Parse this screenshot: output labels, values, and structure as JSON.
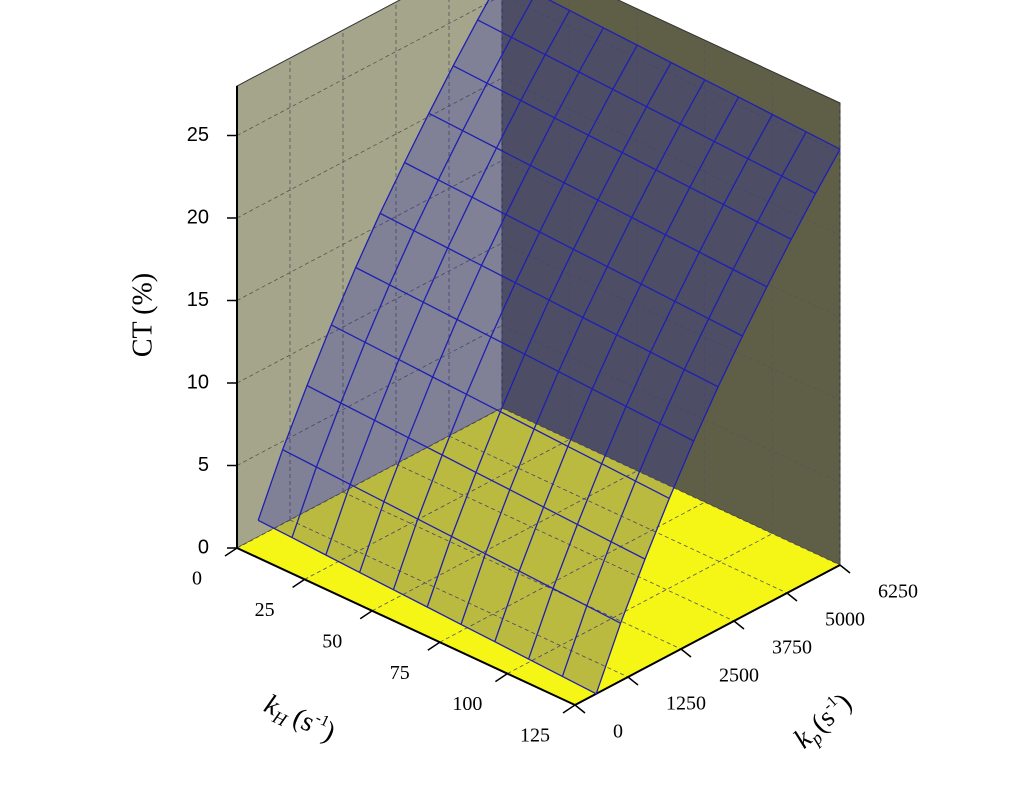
{
  "chart_data": {
    "type": "surface3d",
    "zlabel": "CT (%)",
    "xlabel": {
      "base": "k",
      "sub": "H",
      "unit": "(s",
      "sup": "-1",
      "end": ")"
    },
    "ylabel": {
      "base": "k",
      "sub": "p",
      "unit": "(s",
      "sup": "-1",
      "end": ")"
    },
    "xlim": [
      0,
      125
    ],
    "xticks": [
      0,
      25,
      50,
      75,
      100,
      125
    ],
    "ylim": [
      0,
      6250
    ],
    "yticks": [
      0,
      1250,
      2500,
      3750,
      5000,
      6250
    ],
    "zlim": [
      0,
      28
    ],
    "zticks": [
      0,
      5,
      10,
      15,
      20,
      25
    ],
    "x": [
      0,
      12.5,
      25,
      37.5,
      50,
      62.5,
      75,
      87.5,
      100,
      112.5,
      125
    ],
    "y": [
      500,
      1075,
      1650,
      2225,
      2800,
      3375,
      3950,
      4525,
      5100,
      5675,
      6250
    ],
    "z": [
      [
        1.0,
        4.5,
        7.6,
        10.5,
        13.2,
        15.7,
        18.0,
        20.2,
        22.3,
        24.3,
        26.2
      ],
      [
        0.9,
        4.4,
        7.5,
        10.4,
        13.1,
        15.6,
        17.9,
        20.1,
        22.2,
        24.2,
        26.1
      ],
      [
        0.8,
        4.3,
        7.4,
        10.3,
        13.0,
        15.5,
        17.8,
        20.0,
        22.1,
        24.1,
        26.0
      ],
      [
        0.7,
        4.2,
        7.3,
        10.2,
        12.9,
        15.4,
        17.7,
        19.9,
        22.0,
        24.0,
        25.9
      ],
      [
        0.6,
        4.1,
        7.2,
        10.1,
        12.8,
        15.3,
        17.6,
        19.8,
        21.9,
        23.9,
        25.8
      ],
      [
        0.5,
        4.0,
        7.1,
        10.0,
        12.7,
        15.2,
        17.5,
        19.7,
        21.8,
        23.8,
        25.7
      ],
      [
        0.4,
        3.9,
        7.0,
        9.9,
        12.6,
        15.1,
        17.4,
        19.6,
        21.7,
        23.7,
        25.6
      ],
      [
        0.3,
        3.8,
        6.9,
        9.8,
        12.5,
        15.0,
        17.3,
        19.5,
        21.6,
        23.6,
        25.5
      ],
      [
        0.2,
        3.7,
        6.8,
        9.7,
        12.4,
        14.9,
        17.2,
        19.4,
        21.5,
        23.5,
        25.4
      ],
      [
        0.1,
        3.6,
        6.7,
        9.6,
        12.3,
        14.8,
        17.1,
        19.3,
        21.4,
        23.4,
        25.3
      ],
      [
        0.0,
        3.5,
        6.6,
        9.5,
        12.2,
        14.7,
        17.0,
        19.2,
        21.3,
        23.3,
        25.2
      ]
    ],
    "color": "#2020b0",
    "wall_left_color": "#a5a58c",
    "wall_right_color": "#5f5f48",
    "floor_color": "#f5f516",
    "grid": true
  }
}
